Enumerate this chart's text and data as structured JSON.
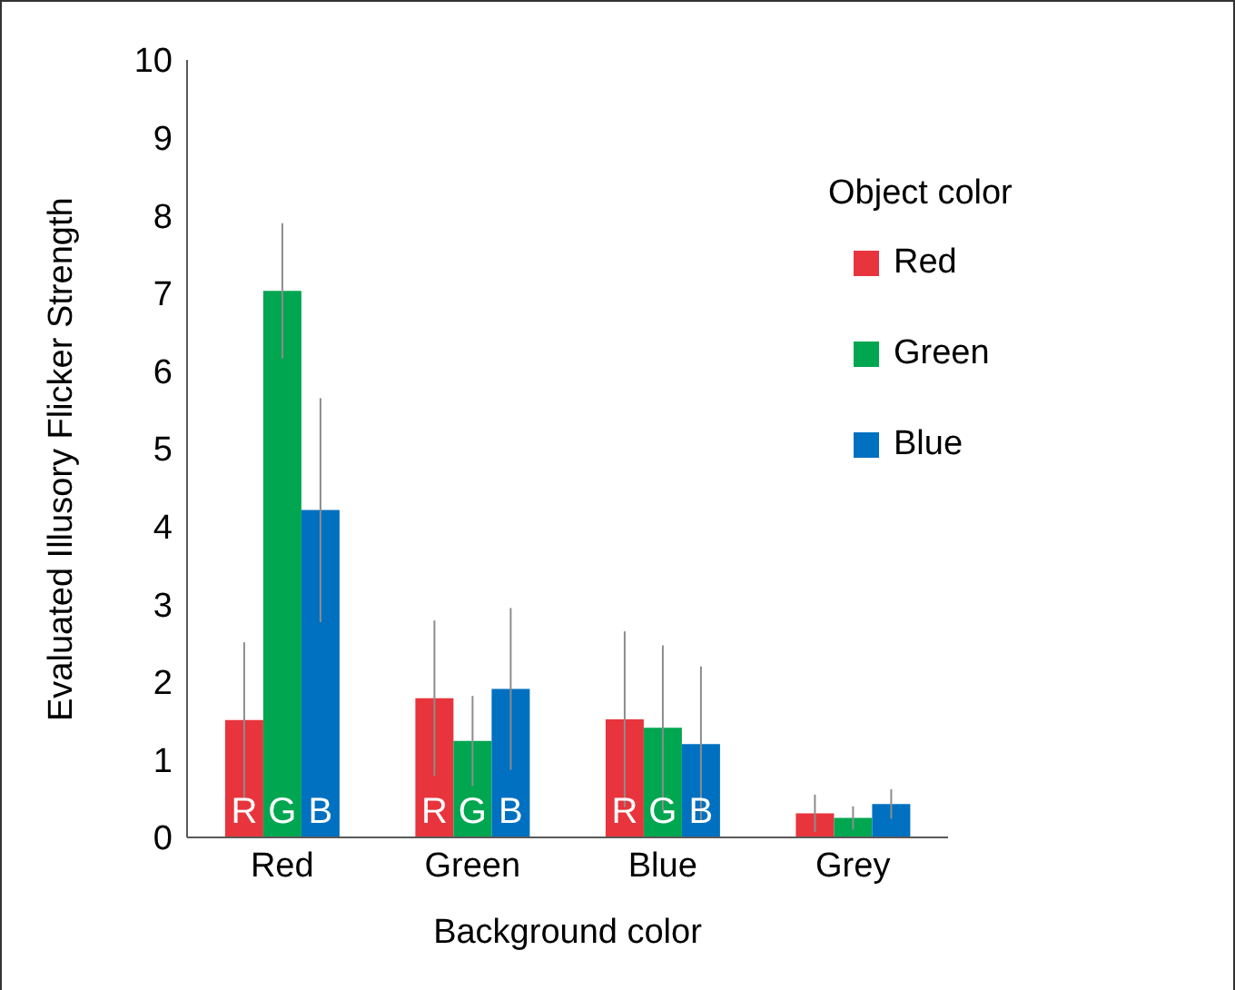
{
  "chart_data": {
    "type": "bar",
    "xlabel": "Background color",
    "ylabel": "Evaluated Illusory Flicker Strength",
    "legend_title": "Object color",
    "categories": [
      "Red",
      "Green",
      "Blue",
      "Grey"
    ],
    "series": [
      {
        "name": "Red",
        "color": "#e8343c",
        "values": [
          1.51,
          1.79,
          1.52,
          0.31
        ],
        "errors": [
          1.0,
          1.0,
          1.13,
          0.24
        ],
        "value_labels": [
          "R",
          "R",
          "R",
          null
        ]
      },
      {
        "name": "Green",
        "color": "#00a650",
        "values": [
          7.03,
          1.24,
          1.41,
          0.25
        ],
        "errors": [
          0.87,
          0.58,
          1.06,
          0.15
        ],
        "value_labels": [
          "G",
          "G",
          "G",
          null
        ]
      },
      {
        "name": "Blue",
        "color": "#0070c0",
        "values": [
          4.21,
          1.91,
          1.2,
          0.43
        ],
        "errors": [
          1.44,
          1.04,
          1.0,
          0.19
        ],
        "value_labels": [
          "B",
          "B",
          "B",
          null
        ]
      }
    ],
    "ylim": [
      0,
      10
    ],
    "yticks": [
      0,
      1,
      2,
      3,
      4,
      5,
      6,
      7,
      8,
      9,
      10
    ],
    "grid": false,
    "legend": "top right"
  }
}
